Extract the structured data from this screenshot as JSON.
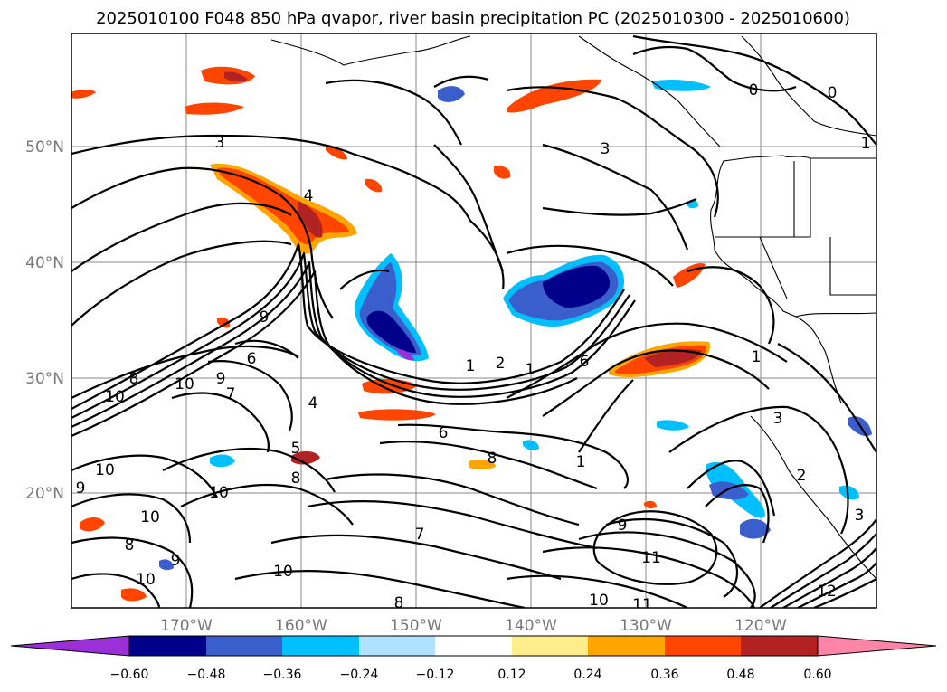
{
  "title": "2025010100 F048 850 hPa qvapor, river basin precipitation PC (2025010300 - 2025010600)",
  "lon_labels": [
    "170°W",
    "160°W",
    "150°W",
    "140°W",
    "130°W",
    "120°W"
  ],
  "lat_labels": [
    "50°N",
    "40°N",
    "30°N",
    "20°N"
  ],
  "colorbar": {
    "ticks": [
      "−0.60",
      "−0.48",
      "−0.36",
      "−0.24",
      "−0.12",
      "0.12",
      "0.24",
      "0.36",
      "0.48",
      "0.60"
    ],
    "colors": [
      "#9b30d9",
      "#00008b",
      "#3a5fcd",
      "#00bfff",
      "#b0e2ff",
      "#ffffff",
      "#ffec8b",
      "#ffa500",
      "#ff4500",
      "#b22222",
      "#ff85a8"
    ]
  },
  "contour_labels": [
    "3",
    "4",
    "0",
    "1",
    "3",
    "0",
    "1",
    "9",
    "9",
    "6",
    "8",
    "10",
    "10",
    "7",
    "4",
    "1",
    "2",
    "6",
    "1",
    "3",
    "2",
    "6",
    "8",
    "5",
    "10",
    "8",
    "10",
    "9",
    "10",
    "8",
    "9",
    "10",
    "9",
    "7",
    "1",
    "8",
    "11",
    "10",
    "11",
    "10",
    "12",
    "3"
  ],
  "chart_data": {
    "type": "contour_map",
    "title": "2025010100 F048 850 hPa qvapor, river basin precipitation PC (2025010300 - 2025010600)",
    "fields": [
      "850 hPa qvapor",
      "river basin precipitation PC"
    ],
    "x_ticks": [
      "170°W",
      "160°W",
      "150°W",
      "140°W",
      "130°W",
      "120°W"
    ],
    "y_ticks": [
      "50°N",
      "40°N",
      "30°N",
      "20°N"
    ],
    "colorbar_levels": [
      -0.6,
      -0.48,
      -0.36,
      -0.24,
      -0.12,
      0.12,
      0.24,
      0.36,
      0.48,
      0.6
    ],
    "colorbar_extend": "both",
    "qvapor_contour_values": [
      0,
      1,
      2,
      3,
      4,
      5,
      6,
      7,
      8,
      9,
      10,
      11,
      12
    ]
  }
}
